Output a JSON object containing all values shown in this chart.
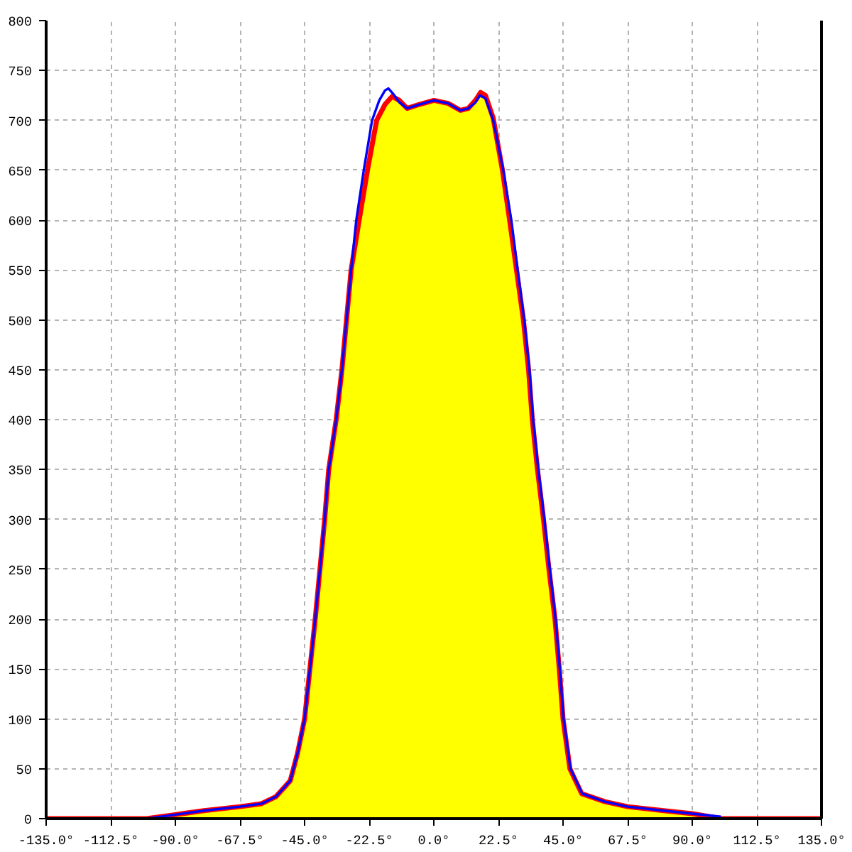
{
  "chart_data": {
    "type": "line",
    "xlim": [
      -135,
      135
    ],
    "ylim": [
      0,
      800
    ],
    "xticks": [
      {
        "value": -135,
        "label": "-135.0°"
      },
      {
        "value": -112.5,
        "label": "-112.5°"
      },
      {
        "value": -90,
        "label": "-90.0°"
      },
      {
        "value": -67.5,
        "label": "-67.5°"
      },
      {
        "value": -45,
        "label": "-45.0°"
      },
      {
        "value": -22.5,
        "label": "-22.5°"
      },
      {
        "value": 0,
        "label": "0.0°"
      },
      {
        "value": 22.5,
        "label": "22.5°"
      },
      {
        "value": 45,
        "label": "45.0°"
      },
      {
        "value": 67.5,
        "label": "67.5°"
      },
      {
        "value": 90,
        "label": "90.0°"
      },
      {
        "value": 112.5,
        "label": "112.5°"
      },
      {
        "value": 135,
        "label": "135.0°"
      }
    ],
    "yticks": [
      0,
      50,
      100,
      150,
      200,
      250,
      300,
      350,
      400,
      450,
      500,
      550,
      600,
      650,
      700,
      750,
      800
    ],
    "grid": true,
    "line_style": "solid",
    "marker": "none",
    "series": [
      {
        "type": "area",
        "color": "#ffff00",
        "x": [
          -100,
          -90,
          -80,
          -67.5,
          -60,
          -55,
          -50,
          -47.5,
          -45,
          -41.3,
          -38,
          -36.6,
          -34,
          -32,
          -30.4,
          -28.8,
          -26,
          -23.1,
          -19.9,
          -17,
          -14.5,
          -12,
          -9.3,
          -5,
          0,
          5,
          9.3,
          12,
          14.5,
          16.3,
          18,
          20.7,
          23.9,
          26.4,
          28.8,
          31.2,
          33,
          34.3,
          36.1,
          38.2,
          40.1,
          42.2,
          43.7,
          45,
          47.4,
          51.5,
          59.6,
          67.5,
          80,
          90,
          100
        ],
        "values": [
          0,
          4,
          8,
          12,
          15,
          22,
          38,
          65,
          100,
          200,
          300,
          350,
          400,
          450,
          500,
          550,
          600,
          650,
          700,
          716,
          724,
          720,
          712,
          716,
          720,
          717,
          710,
          712,
          720,
          728,
          725,
          702,
          650,
          600,
          550,
          500,
          450,
          400,
          350,
          300,
          250,
          200,
          150,
          100,
          50,
          25,
          17,
          12,
          8,
          5,
          0
        ]
      },
      {
        "color": "#0000ff",
        "x": [
          -100,
          -90,
          -80,
          -67.5,
          -60,
          -55,
          -50,
          -47.5,
          -45,
          -41.3,
          -38,
          -36.6,
          -34,
          -32,
          -30.4,
          -28.8,
          -27,
          -24.4,
          -21.5,
          -19,
          -17,
          -15.8,
          -14,
          -12,
          -9.3,
          -5,
          0,
          5,
          9.3,
          12,
          14.5,
          16,
          18,
          20.7,
          24.2,
          27,
          29.2,
          31.5,
          33.3,
          34.6,
          36.4,
          38.5,
          40.4,
          42.4,
          43.9,
          45.2,
          47.6,
          51.7,
          59.6,
          67.5,
          80,
          90,
          100
        ],
        "values": [
          0,
          4,
          8,
          12,
          15,
          22,
          38,
          65,
          100,
          200,
          300,
          350,
          400,
          450,
          500,
          550,
          600,
          650,
          700,
          720,
          730,
          732,
          726,
          718,
          712,
          716,
          720,
          717,
          710,
          712,
          718,
          725,
          722,
          700,
          650,
          600,
          550,
          500,
          450,
          400,
          350,
          300,
          250,
          200,
          150,
          100,
          50,
          25,
          17,
          12,
          8,
          5,
          2
        ]
      },
      {
        "color": "#ff0000",
        "x": [
          -135,
          -100,
          -90,
          -80,
          -67.5,
          -60,
          -55,
          -50,
          -47.5,
          -45,
          -41.3,
          -38,
          -36.6,
          -34,
          -32,
          -30.4,
          -28.8,
          -26,
          -23.1,
          -19.9,
          -17,
          -14.5,
          -12,
          -9.3,
          -5,
          0,
          5,
          9.3,
          12,
          14.5,
          16.3,
          18,
          20.7,
          23.9,
          26.4,
          28.8,
          31.2,
          33,
          34.3,
          36.1,
          38.2,
          40.1,
          42.2,
          43.7,
          45,
          47.4,
          51.5,
          59.6,
          67.5,
          80,
          90,
          100,
          135
        ],
        "values": [
          0,
          0,
          4,
          8,
          12,
          15,
          22,
          38,
          65,
          100,
          200,
          300,
          350,
          400,
          450,
          500,
          550,
          600,
          650,
          700,
          716,
          724,
          720,
          712,
          716,
          720,
          717,
          710,
          712,
          720,
          728,
          725,
          702,
          650,
          600,
          550,
          500,
          450,
          400,
          350,
          300,
          250,
          200,
          150,
          100,
          50,
          25,
          17,
          12,
          8,
          5,
          0,
          0
        ]
      }
    ]
  }
}
